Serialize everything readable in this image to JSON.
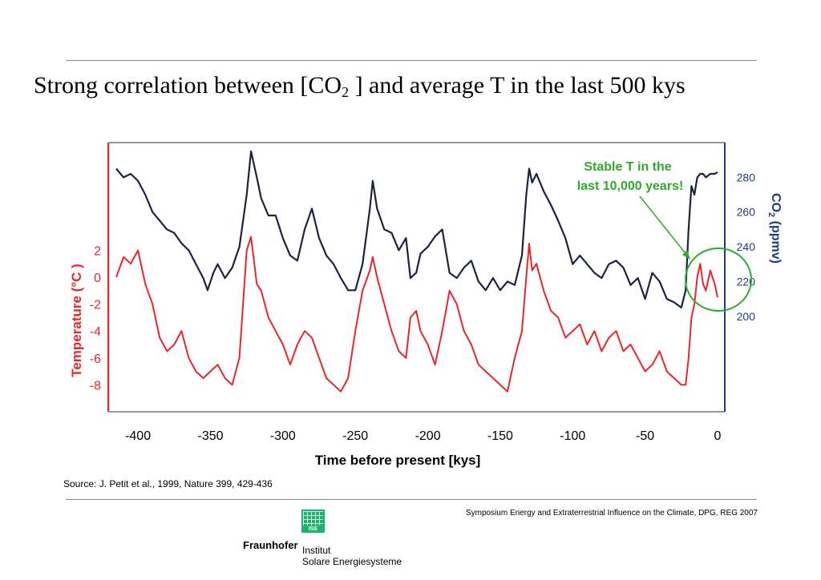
{
  "slide": {
    "title_pre": "Strong correlation  between [CO",
    "title_sub": "2",
    "title_post": " ] and average T in the last 500 kys",
    "source": "Source: J. Petit et al., 1999, Nature 399, 429-436",
    "footer": "Symposium Energy and Extraterrestrial Influence on the Climate, DPG, REG 2007"
  },
  "logo": {
    "mark_text": "ISE",
    "name": "Fraunhofer",
    "line1": "Institut",
    "line2": "Solare Energiesysteme"
  },
  "colors": {
    "temperature": "#e8262a",
    "co2": "#1c2340",
    "co2_axis": "#1a3a8c",
    "annotation": "#2eaa2e"
  },
  "chart_data": {
    "type": "line",
    "title": "",
    "xlabel": "Time before present [kys]",
    "xlim": [
      -420,
      5
    ],
    "x_ticks": [
      "-400",
      "-350",
      "-300",
      "-250",
      "-200",
      "-150",
      "-100",
      "-50",
      "0"
    ],
    "grid": false,
    "y_left": {
      "label": "Temperature (°C )",
      "ticks": [
        "2",
        "0",
        "-2",
        "-4",
        "-6",
        "-8"
      ],
      "ylim": [
        -10,
        10
      ]
    },
    "y_right": {
      "label_main": "CO",
      "label_sub": "2",
      "label_tail": " (ppmv)",
      "ticks": [
        "280",
        "260",
        "240",
        "220",
        "200"
      ],
      "ylim": [
        145,
        300
      ]
    },
    "annotation": {
      "line1": "Stable T in the",
      "line2": "last 10,000 years!",
      "points_to_x": -10
    },
    "series": [
      {
        "key": "temperature",
        "axis": "left",
        "x": [
          -415,
          -410,
          -405,
          -400,
          -395,
          -390,
          -385,
          -380,
          -375,
          -370,
          -365,
          -360,
          -355,
          -350,
          -345,
          -340,
          -335,
          -330,
          -325,
          -322,
          -318,
          -315,
          -310,
          -305,
          -300,
          -295,
          -290,
          -285,
          -280,
          -275,
          -270,
          -265,
          -260,
          -255,
          -250,
          -245,
          -240,
          -238,
          -235,
          -230,
          -225,
          -220,
          -215,
          -212,
          -208,
          -205,
          -200,
          -195,
          -190,
          -185,
          -180,
          -175,
          -170,
          -165,
          -160,
          -155,
          -150,
          -145,
          -140,
          -135,
          -132,
          -130,
          -128,
          -125,
          -120,
          -115,
          -110,
          -105,
          -100,
          -95,
          -90,
          -85,
          -80,
          -75,
          -70,
          -65,
          -60,
          -55,
          -50,
          -45,
          -40,
          -35,
          -30,
          -25,
          -22,
          -20,
          -18,
          -16,
          -14,
          -12,
          -10,
          -8,
          -5,
          -2,
          0
        ],
        "values": [
          0,
          1.5,
          1,
          2,
          -0.5,
          -2,
          -4.5,
          -5.5,
          -5,
          -4,
          -6,
          -7,
          -7.5,
          -7,
          -6.5,
          -7.5,
          -8,
          -6,
          2,
          3,
          -0.5,
          -1,
          -3,
          -4,
          -5,
          -6.5,
          -5,
          -4,
          -4.5,
          -6,
          -7.5,
          -8,
          -8.5,
          -7.5,
          -4,
          -1,
          0.5,
          1.5,
          0,
          -2,
          -4,
          -5.5,
          -6,
          -3,
          -2.5,
          -4,
          -5,
          -6.5,
          -4,
          -1,
          -2,
          -4,
          -5,
          -6.5,
          -7,
          -7.5,
          -8,
          -8.5,
          -6,
          -4,
          0,
          2.5,
          0.5,
          1,
          -1,
          -2.5,
          -3,
          -4.5,
          -4,
          -3.5,
          -5,
          -4,
          -5.5,
          -4.5,
          -4,
          -5.5,
          -5,
          -6,
          -7,
          -6.5,
          -5.5,
          -7,
          -7.5,
          -8,
          -8,
          -6,
          -3,
          -2,
          0,
          1,
          -0.5,
          -1,
          0.5,
          -0.5,
          -1.5
        ]
      },
      {
        "key": "co2",
        "axis": "right",
        "x": [
          -415,
          -410,
          -405,
          -400,
          -395,
          -390,
          -385,
          -380,
          -375,
          -370,
          -365,
          -360,
          -355,
          -352,
          -348,
          -345,
          -340,
          -335,
          -330,
          -325,
          -322,
          -318,
          -315,
          -310,
          -305,
          -300,
          -295,
          -290,
          -285,
          -280,
          -275,
          -270,
          -265,
          -260,
          -255,
          -250,
          -245,
          -240,
          -238,
          -235,
          -230,
          -225,
          -220,
          -215,
          -212,
          -208,
          -205,
          -200,
          -195,
          -190,
          -185,
          -180,
          -175,
          -170,
          -165,
          -160,
          -155,
          -150,
          -145,
          -140,
          -135,
          -132,
          -130,
          -128,
          -125,
          -120,
          -115,
          -110,
          -105,
          -100,
          -95,
          -90,
          -85,
          -80,
          -75,
          -70,
          -65,
          -60,
          -55,
          -50,
          -45,
          -40,
          -35,
          -30,
          -25,
          -22,
          -20,
          -18,
          -16,
          -14,
          -12,
          -10,
          -8,
          -5,
          -2,
          0
        ],
        "values": [
          285,
          280,
          282,
          278,
          270,
          260,
          255,
          250,
          248,
          242,
          238,
          230,
          222,
          215,
          225,
          230,
          222,
          228,
          240,
          270,
          295,
          280,
          268,
          258,
          258,
          245,
          235,
          232,
          250,
          262,
          245,
          235,
          230,
          222,
          215,
          215,
          230,
          262,
          278,
          262,
          250,
          248,
          238,
          245,
          222,
          225,
          236,
          240,
          246,
          250,
          225,
          222,
          228,
          232,
          220,
          215,
          222,
          215,
          220,
          218,
          235,
          270,
          285,
          277,
          282,
          272,
          264,
          255,
          245,
          230,
          235,
          230,
          225,
          222,
          230,
          232,
          228,
          218,
          222,
          210,
          225,
          220,
          210,
          208,
          205,
          215,
          250,
          275,
          270,
          280,
          282,
          282,
          280,
          282,
          282,
          283
        ]
      }
    ]
  }
}
